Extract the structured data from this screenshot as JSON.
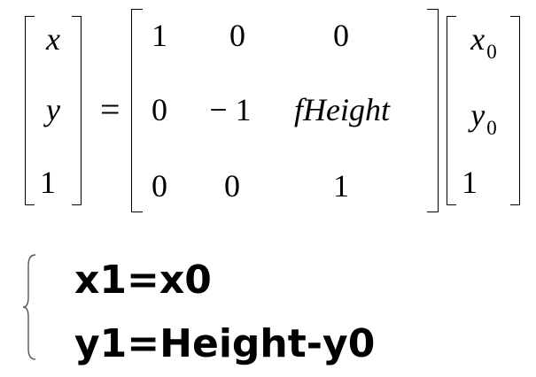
{
  "lhs_vector": {
    "r1": "x",
    "r2": "y",
    "r3": "1"
  },
  "equals": "=",
  "matrix": {
    "r1": [
      "1",
      "0",
      "0"
    ],
    "r2": [
      "0",
      "− 1",
      "fHeight"
    ],
    "r3": [
      "0",
      "0",
      "1"
    ]
  },
  "rhs_vector": {
    "r1": {
      "base": "x",
      "sub": "0"
    },
    "r2": {
      "base": "y",
      "sub": "0"
    },
    "r3": "1"
  },
  "system": {
    "line1": "x1=x0",
    "line2": "y1=Height-y0"
  }
}
